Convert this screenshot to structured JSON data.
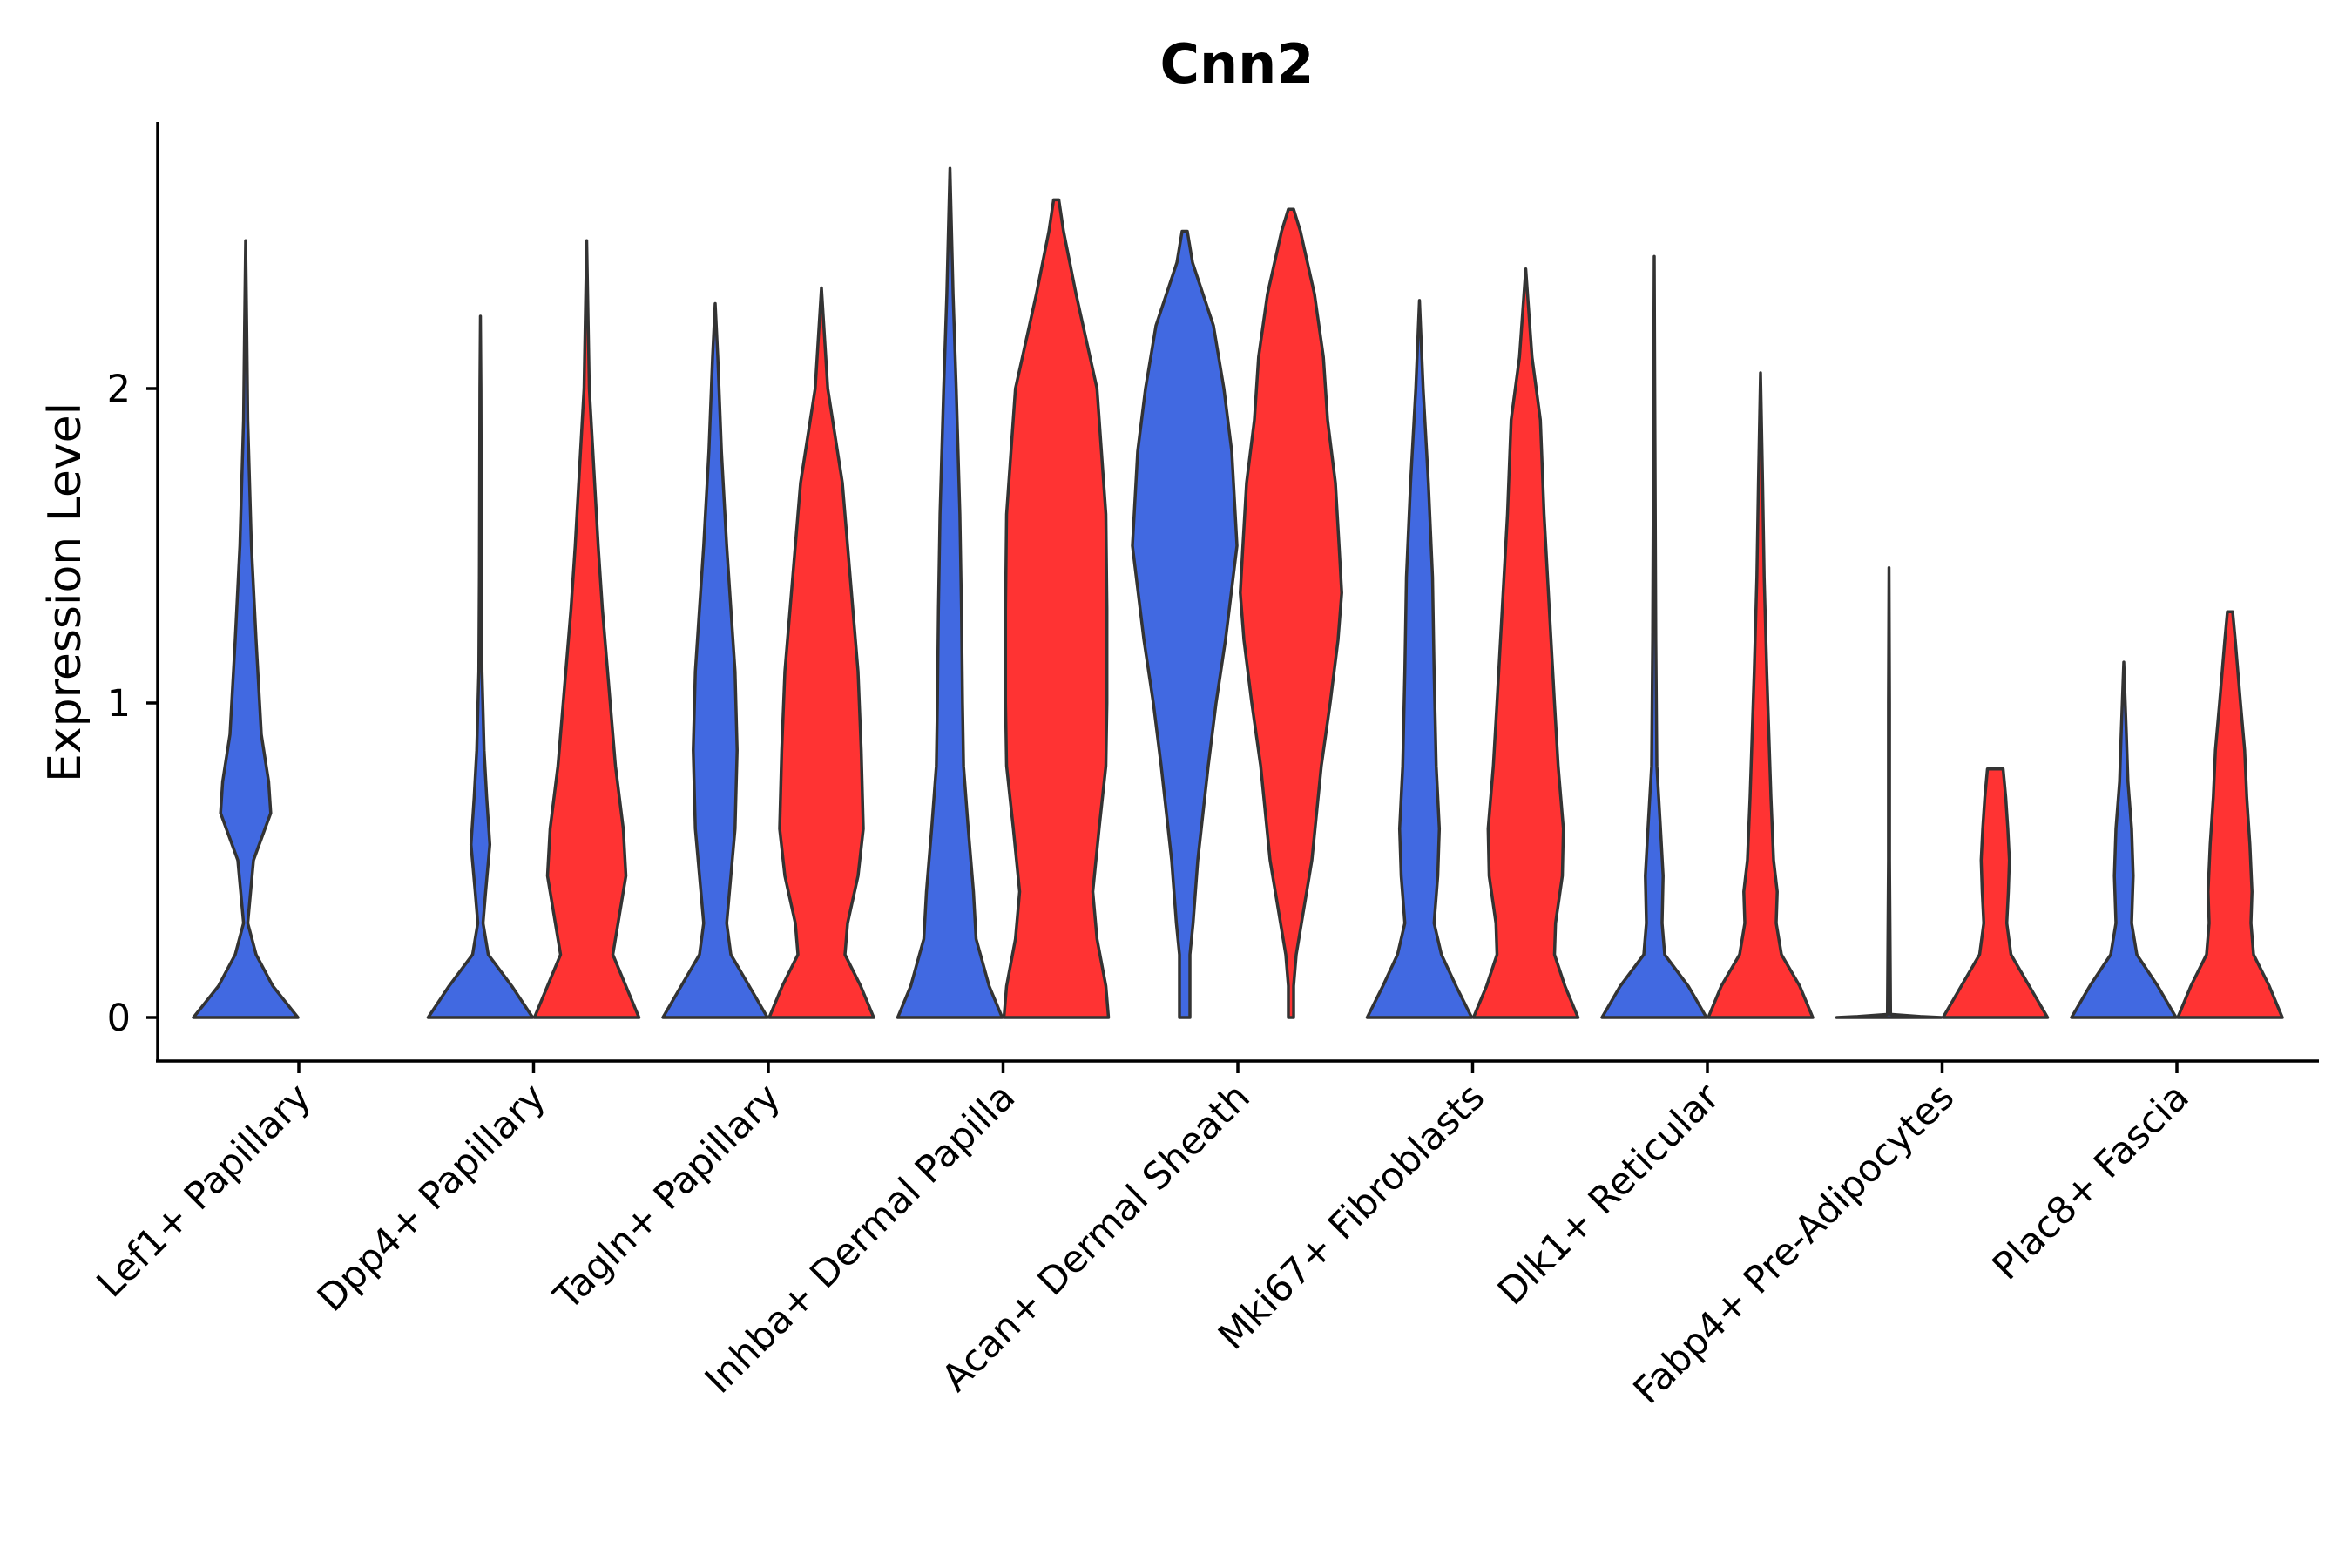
{
  "chart_data": {
    "type": "violin",
    "title": "Cnn2",
    "xlabel": "",
    "ylabel": "Expression Level",
    "ylim": [
      -0.14,
      2.85
    ],
    "yticks": [
      "0",
      "1",
      "2"
    ],
    "ytick_values": [
      0,
      1,
      2
    ],
    "colors": {
      "group1": "#4169E1",
      "group2": "#FF3333",
      "outline": "#333333"
    },
    "categories": [
      "Lef1+ Papillary",
      "Dpp4+ Papillary",
      "Tagln+ Papillary",
      "Inhba+ Dermal Papilla",
      "Acan+ Dermal Sheath",
      "Mki67+ Fibroblasts",
      "Dlk1+ Reticular",
      "Fabp4+ Pre-Adipocytes",
      "Plac8+ Fascia"
    ],
    "series": [
      {
        "name": "group1",
        "color": "#4169E1",
        "violins": [
          {
            "category": "Lef1+ Papillary",
            "max": 2.47,
            "profile": [
              [
                0,
                1.0
              ],
              [
                0.1,
                0.52
              ],
              [
                0.2,
                0.2
              ],
              [
                0.3,
                0.04
              ],
              [
                0.5,
                0.15
              ],
              [
                0.65,
                0.48
              ],
              [
                0.75,
                0.44
              ],
              [
                0.9,
                0.3
              ],
              [
                1.2,
                0.2
              ],
              [
                1.5,
                0.11
              ],
              [
                1.9,
                0.04
              ],
              [
                2.2,
                0.02
              ],
              [
                2.47,
                0.0
              ]
            ]
          },
          {
            "category": "Dpp4+ Papillary",
            "max": 2.23,
            "profile": [
              [
                0,
                1.0
              ],
              [
                0.1,
                0.6
              ],
              [
                0.2,
                0.15
              ],
              [
                0.3,
                0.05
              ],
              [
                0.4,
                0.1
              ],
              [
                0.55,
                0.18
              ],
              [
                0.7,
                0.12
              ],
              [
                0.85,
                0.07
              ],
              [
                1.1,
                0.03
              ],
              [
                1.4,
                0.02
              ],
              [
                2.0,
                0.01
              ],
              [
                2.23,
                0.0
              ]
            ]
          },
          {
            "category": "Tagln+ Papillary",
            "max": 2.27,
            "profile": [
              [
                0,
                1.0
              ],
              [
                0.1,
                0.65
              ],
              [
                0.2,
                0.3
              ],
              [
                0.3,
                0.22
              ],
              [
                0.45,
                0.3
              ],
              [
                0.6,
                0.38
              ],
              [
                0.85,
                0.42
              ],
              [
                1.1,
                0.38
              ],
              [
                1.5,
                0.22
              ],
              [
                1.8,
                0.12
              ],
              [
                2.1,
                0.05
              ],
              [
                2.27,
                0.0
              ]
            ]
          },
          {
            "category": "Inhba+ Dermal Papilla",
            "max": 2.7,
            "profile": [
              [
                0,
                1.0
              ],
              [
                0.1,
                0.75
              ],
              [
                0.25,
                0.5
              ],
              [
                0.4,
                0.45
              ],
              [
                0.6,
                0.35
              ],
              [
                0.8,
                0.26
              ],
              [
                1.0,
                0.24
              ],
              [
                1.3,
                0.22
              ],
              [
                1.6,
                0.19
              ],
              [
                2.0,
                0.12
              ],
              [
                2.3,
                0.06
              ],
              [
                2.7,
                0.0
              ]
            ]
          },
          {
            "category": "Acan+ Dermal Sheath",
            "max": 2.5,
            "profile": [
              [
                0,
                0.1
              ],
              [
                0.2,
                0.1
              ],
              [
                0.3,
                0.16
              ],
              [
                0.5,
                0.25
              ],
              [
                0.8,
                0.45
              ],
              [
                1.0,
                0.6
              ],
              [
                1.2,
                0.78
              ],
              [
                1.5,
                1.0
              ],
              [
                1.8,
                0.9
              ],
              [
                2.0,
                0.75
              ],
              [
                2.2,
                0.55
              ],
              [
                2.4,
                0.15
              ],
              [
                2.5,
                0.05
              ]
            ]
          },
          {
            "category": "Mki67+ Fibroblasts",
            "max": 2.28,
            "profile": [
              [
                0,
                1.0
              ],
              [
                0.1,
                0.7
              ],
              [
                0.2,
                0.42
              ],
              [
                0.3,
                0.28
              ],
              [
                0.45,
                0.35
              ],
              [
                0.6,
                0.38
              ],
              [
                0.8,
                0.32
              ],
              [
                1.1,
                0.28
              ],
              [
                1.4,
                0.25
              ],
              [
                1.7,
                0.17
              ],
              [
                2.0,
                0.07
              ],
              [
                2.28,
                0.0
              ]
            ]
          },
          {
            "category": "Dlk1+ Reticular",
            "max": 2.42,
            "profile": [
              [
                0,
                1.0
              ],
              [
                0.1,
                0.65
              ],
              [
                0.2,
                0.2
              ],
              [
                0.3,
                0.15
              ],
              [
                0.45,
                0.17
              ],
              [
                0.6,
                0.12
              ],
              [
                0.8,
                0.05
              ],
              [
                1.2,
                0.03
              ],
              [
                2.0,
                0.01
              ],
              [
                2.42,
                0.0
              ]
            ]
          },
          {
            "category": "Fabp4+ Pre-Adipocytes",
            "max": 1.43,
            "profile": [
              [
                0,
                1.0
              ],
              [
                0.003,
                0.6
              ],
              [
                0.01,
                0.03
              ],
              [
                0.5,
                0.01
              ],
              [
                1.0,
                0.01
              ],
              [
                1.43,
                0.0
              ]
            ]
          },
          {
            "category": "Plac8+ Fascia",
            "max": 1.13,
            "profile": [
              [
                0,
                1.0
              ],
              [
                0.1,
                0.65
              ],
              [
                0.2,
                0.25
              ],
              [
                0.3,
                0.15
              ],
              [
                0.45,
                0.18
              ],
              [
                0.6,
                0.15
              ],
              [
                0.75,
                0.08
              ],
              [
                0.9,
                0.05
              ],
              [
                1.13,
                0.0
              ]
            ]
          }
        ]
      },
      {
        "name": "group2",
        "color": "#FF3333",
        "violins": [
          {
            "category": "Lef1+ Papillary",
            "max": 0.0,
            "profile": [
              [
                0,
                0.0
              ]
            ]
          },
          {
            "category": "Dpp4+ Papillary",
            "max": 2.47,
            "profile": [
              [
                0,
                1.0
              ],
              [
                0.1,
                0.75
              ],
              [
                0.2,
                0.5
              ],
              [
                0.3,
                0.6
              ],
              [
                0.45,
                0.75
              ],
              [
                0.6,
                0.7
              ],
              [
                0.8,
                0.55
              ],
              [
                1.0,
                0.45
              ],
              [
                1.3,
                0.3
              ],
              [
                1.5,
                0.22
              ],
              [
                2.0,
                0.05
              ],
              [
                2.47,
                0.0
              ]
            ]
          },
          {
            "category": "Tagln+ Papillary",
            "max": 2.32,
            "profile": [
              [
                0,
                1.0
              ],
              [
                0.1,
                0.75
              ],
              [
                0.2,
                0.45
              ],
              [
                0.3,
                0.5
              ],
              [
                0.45,
                0.7
              ],
              [
                0.6,
                0.8
              ],
              [
                0.85,
                0.76
              ],
              [
                1.1,
                0.7
              ],
              [
                1.4,
                0.55
              ],
              [
                1.7,
                0.4
              ],
              [
                2.0,
                0.12
              ],
              [
                2.32,
                0.0
              ]
            ]
          },
          {
            "category": "Inhba+ Dermal Papilla",
            "max": 2.6,
            "profile": [
              [
                0,
                1.0
              ],
              [
                0.1,
                0.95
              ],
              [
                0.25,
                0.78
              ],
              [
                0.4,
                0.7
              ],
              [
                0.6,
                0.82
              ],
              [
                0.8,
                0.95
              ],
              [
                1.0,
                0.97
              ],
              [
                1.3,
                0.97
              ],
              [
                1.6,
                0.95
              ],
              [
                2.0,
                0.78
              ],
              [
                2.3,
                0.38
              ],
              [
                2.5,
                0.14
              ],
              [
                2.6,
                0.05
              ]
            ]
          },
          {
            "category": "Acan+ Dermal Sheath",
            "max": 2.57,
            "profile": [
              [
                0,
                0.05
              ],
              [
                0.1,
                0.05
              ],
              [
                0.2,
                0.1
              ],
              [
                0.35,
                0.25
              ],
              [
                0.5,
                0.4
              ],
              [
                0.8,
                0.58
              ],
              [
                1.0,
                0.75
              ],
              [
                1.2,
                0.9
              ],
              [
                1.35,
                0.97
              ],
              [
                1.5,
                0.92
              ],
              [
                1.7,
                0.85
              ],
              [
                1.9,
                0.7
              ],
              [
                2.1,
                0.62
              ],
              [
                2.3,
                0.45
              ],
              [
                2.5,
                0.18
              ],
              [
                2.57,
                0.05
              ]
            ]
          },
          {
            "category": "Mki67+ Fibroblasts",
            "max": 2.38,
            "profile": [
              [
                0,
                1.0
              ],
              [
                0.1,
                0.75
              ],
              [
                0.2,
                0.55
              ],
              [
                0.3,
                0.57
              ],
              [
                0.45,
                0.7
              ],
              [
                0.6,
                0.72
              ],
              [
                0.8,
                0.62
              ],
              [
                1.0,
                0.55
              ],
              [
                1.3,
                0.45
              ],
              [
                1.6,
                0.35
              ],
              [
                1.9,
                0.28
              ],
              [
                2.1,
                0.12
              ],
              [
                2.38,
                0.0
              ]
            ]
          },
          {
            "category": "Dlk1+ Reticular",
            "max": 2.05,
            "profile": [
              [
                0,
                1.0
              ],
              [
                0.1,
                0.75
              ],
              [
                0.2,
                0.4
              ],
              [
                0.3,
                0.3
              ],
              [
                0.4,
                0.32
              ],
              [
                0.5,
                0.25
              ],
              [
                0.7,
                0.2
              ],
              [
                0.9,
                0.16
              ],
              [
                1.1,
                0.12
              ],
              [
                1.4,
                0.07
              ],
              [
                1.7,
                0.04
              ],
              [
                2.05,
                0.0
              ]
            ]
          },
          {
            "category": "Fabp4+ Pre-Adipocytes",
            "max": 0.79,
            "profile": [
              [
                0,
                1.0
              ],
              [
                0.1,
                0.65
              ],
              [
                0.2,
                0.3
              ],
              [
                0.3,
                0.22
              ],
              [
                0.4,
                0.25
              ],
              [
                0.5,
                0.27
              ],
              [
                0.6,
                0.24
              ],
              [
                0.7,
                0.2
              ],
              [
                0.79,
                0.15
              ]
            ]
          },
          {
            "category": "Plac8+ Fascia",
            "max": 1.29,
            "profile": [
              [
                0,
                1.0
              ],
              [
                0.1,
                0.75
              ],
              [
                0.2,
                0.45
              ],
              [
                0.3,
                0.4
              ],
              [
                0.4,
                0.42
              ],
              [
                0.55,
                0.38
              ],
              [
                0.7,
                0.32
              ],
              [
                0.85,
                0.28
              ],
              [
                1.0,
                0.2
              ],
              [
                1.2,
                0.1
              ],
              [
                1.29,
                0.05
              ]
            ]
          }
        ]
      }
    ]
  }
}
